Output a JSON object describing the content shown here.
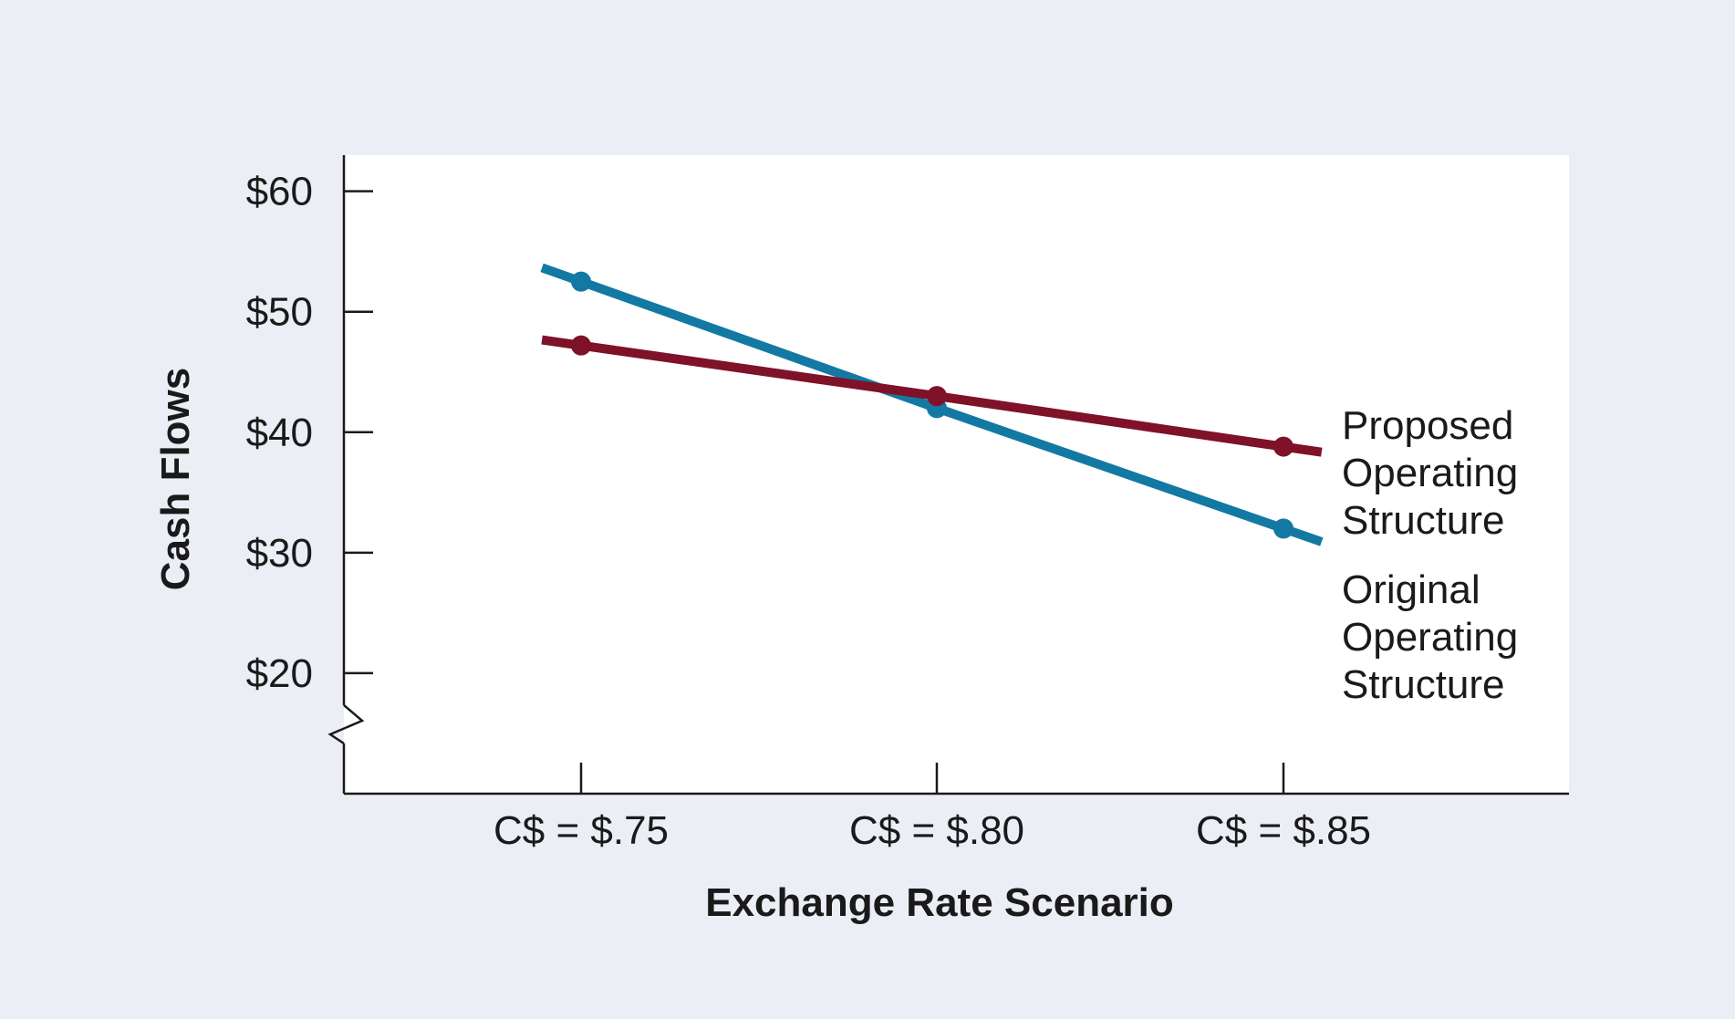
{
  "chart_data": {
    "type": "line",
    "xlabel": "Exchange Rate Scenario",
    "ylabel": "Cash Flows",
    "categories": [
      "C$ = $.75",
      "C$ = $.80",
      "C$ = $.85"
    ],
    "y_ticks": [
      "$20",
      "$30",
      "$40",
      "$50",
      "$60"
    ],
    "y_tick_values": [
      20,
      30,
      40,
      50,
      60
    ],
    "ylim": [
      10,
      63
    ],
    "axis_break": true,
    "grid": false,
    "legend": "inline labels at right end of lines",
    "series": [
      {
        "name": "Original Operating Structure",
        "label_lines": [
          "Original",
          "Operating",
          "Structure"
        ],
        "values": [
          52.5,
          42,
          32
        ],
        "color": "#1379a3"
      },
      {
        "name": "Proposed Operating Structure",
        "label_lines": [
          "Proposed",
          "Operating",
          "Structure"
        ],
        "values": [
          47.2,
          43,
          38.8
        ],
        "color": "#7f1228"
      }
    ]
  }
}
